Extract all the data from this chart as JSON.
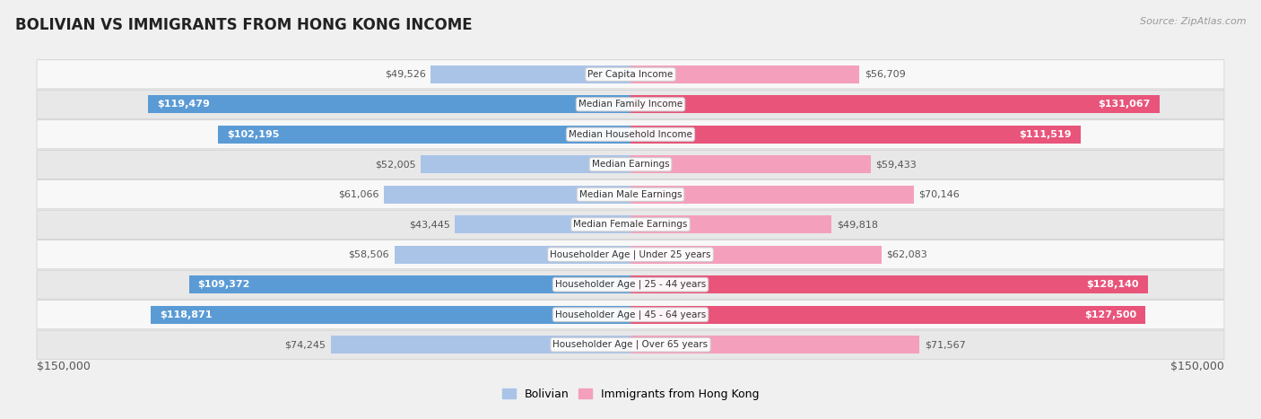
{
  "title": "BOLIVIAN VS IMMIGRANTS FROM HONG KONG INCOME",
  "source": "Source: ZipAtlas.com",
  "categories": [
    "Per Capita Income",
    "Median Family Income",
    "Median Household Income",
    "Median Earnings",
    "Median Male Earnings",
    "Median Female Earnings",
    "Householder Age | Under 25 years",
    "Householder Age | 25 - 44 years",
    "Householder Age | 45 - 64 years",
    "Householder Age | Over 65 years"
  ],
  "bolivian_values": [
    49526,
    119479,
    102195,
    52005,
    61066,
    43445,
    58506,
    109372,
    118871,
    74245
  ],
  "hk_values": [
    56709,
    131067,
    111519,
    59433,
    70146,
    49818,
    62083,
    128140,
    127500,
    71567
  ],
  "bolivian_labels": [
    "$49,526",
    "$119,479",
    "$102,195",
    "$52,005",
    "$61,066",
    "$43,445",
    "$58,506",
    "$109,372",
    "$118,871",
    "$74,245"
  ],
  "hk_labels": [
    "$56,709",
    "$131,067",
    "$111,519",
    "$59,433",
    "$70,146",
    "$49,818",
    "$62,083",
    "$128,140",
    "$127,500",
    "$71,567"
  ],
  "max_value": 150000,
  "bolivian_color_light": "#aac4e8",
  "bolivian_color_dark": "#5b9bd5",
  "hk_color_light": "#f4a0bc",
  "hk_color_dark": "#e8547a",
  "bg_color": "#f0f0f0",
  "row_bg_light": "#f8f8f8",
  "row_bg_dark": "#e8e8e8",
  "bar_height": 0.6,
  "label_threshold": 80000,
  "legend_bolivian": "Bolivian",
  "legend_hk": "Immigrants from Hong Kong",
  "x_label_left": "$150,000",
  "x_label_right": "$150,000",
  "title_fontsize": 12,
  "source_fontsize": 8,
  "label_fontsize": 8,
  "cat_fontsize": 7.5
}
